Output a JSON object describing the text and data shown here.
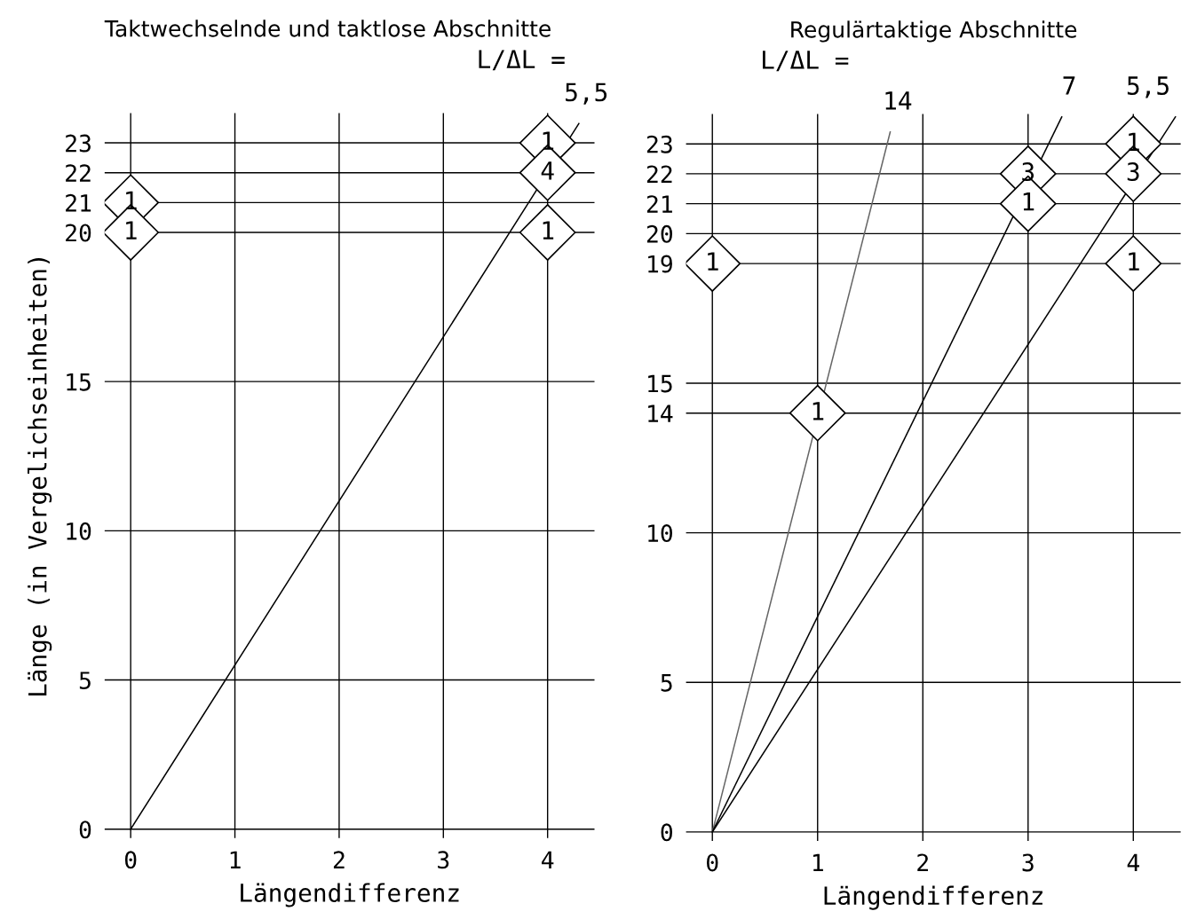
{
  "chart_data": [
    {
      "type": "scatter",
      "title": "Taktwechselnde und taktlose Abschnitte",
      "xlabel": "Längendifferenz",
      "ylabel": "Länge (in Vergelichseinheiten)",
      "xlim": [
        -0.25,
        4.45
      ],
      "ylim": [
        -0.3,
        24
      ],
      "xticks": [
        0,
        1,
        2,
        3,
        4
      ],
      "yticks": [
        0,
        5,
        10,
        15,
        20,
        21,
        22,
        23
      ],
      "grid": true,
      "legend": false,
      "series": [
        {
          "type": "line",
          "color": "#000000",
          "x": [
            0,
            4.3
          ],
          "values": [
            0,
            23.65
          ],
          "marker": "none"
        },
        {
          "color": "#000000",
          "marker": "diamond",
          "x": [
            0,
            0,
            4,
            4,
            4
          ],
          "values": [
            21,
            20,
            23,
            22,
            20
          ]
        }
      ],
      "annotations": [
        "L/ΔL =",
        {
          "text": "5,5",
          "x": 4.3,
          "y": 23.65
        },
        {
          "text": "1",
          "x": 0,
          "y": 21
        },
        {
          "text": "1",
          "x": 0,
          "y": 20
        },
        {
          "text": "1",
          "x": 4,
          "y": 23
        },
        {
          "text": "4",
          "x": 4,
          "y": 22
        },
        {
          "text": "1",
          "x": 4,
          "y": 20
        }
      ]
    },
    {
      "type": "scatter",
      "title": "Regulärtaktige Abschnitte",
      "xlabel": "Längendifferenz",
      "xlim": [
        -0.25,
        4.45
      ],
      "ylim": [
        -0.3,
        24
      ],
      "xticks": [
        0,
        1,
        2,
        3,
        4
      ],
      "yticks": [
        0,
        5,
        10,
        14,
        15,
        19,
        20,
        21,
        22,
        23
      ],
      "grid": true,
      "legend": false,
      "series": [
        {
          "type": "line",
          "color": "#666666",
          "x": [
            0,
            1.69
          ],
          "values": [
            0,
            23.4
          ],
          "marker": "none"
        },
        {
          "type": "line",
          "color": "#000000",
          "x": [
            0,
            3.32
          ],
          "values": [
            0,
            23.9
          ],
          "marker": "none"
        },
        {
          "type": "line",
          "color": "#000000",
          "x": [
            0,
            4.4
          ],
          "values": [
            0,
            23.9
          ],
          "marker": "none"
        },
        {
          "color": "#000000",
          "marker": "diamond",
          "x": [
            0,
            1,
            3,
            3,
            4,
            4,
            4
          ],
          "values": [
            19,
            14,
            22,
            21,
            23,
            22,
            19
          ]
        }
      ],
      "annotations": [
        "L/ΔL =",
        {
          "text": "14",
          "x": 1.69,
          "y": 23.4
        },
        {
          "text": "7",
          "x": 3.32,
          "y": 23.9
        },
        {
          "text": "5,5",
          "x": 4.4,
          "y": 23.9
        },
        {
          "text": "1",
          "x": 0,
          "y": 19
        },
        {
          "text": "1",
          "x": 1,
          "y": 14
        },
        {
          "text": "3",
          "x": 3,
          "y": 22
        },
        {
          "text": "1",
          "x": 3,
          "y": 21
        },
        {
          "text": "1",
          "x": 4,
          "y": 23
        },
        {
          "text": "3",
          "x": 4,
          "y": 22
        },
        {
          "text": "1",
          "x": 4,
          "y": 19
        }
      ]
    }
  ]
}
